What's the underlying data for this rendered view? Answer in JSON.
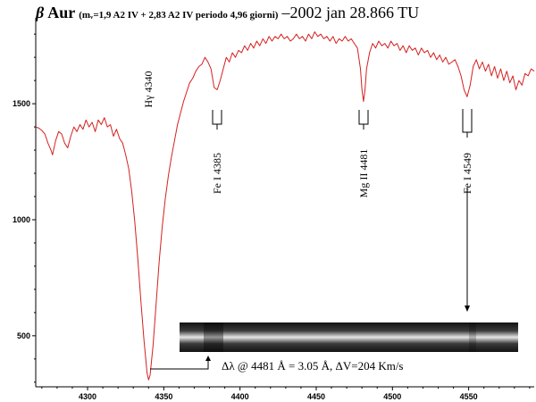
{
  "title": {
    "symbol": "β",
    "star": "Aur",
    "params": "(mᵥ=1,9 A2 IV + 2,83 A2 IV periodo 4,96 giorni)",
    "date": "–2002 jan 28.866 TU"
  },
  "chart_data": {
    "type": "line",
    "x_ticks": [
      "4300",
      "4350",
      "4400",
      "4450",
      "4500",
      "4550"
    ],
    "y_ticks": [
      "500",
      "1000",
      "1500"
    ],
    "xlim": [
      4266,
      4593
    ],
    "ylim": [
      280,
      1870
    ],
    "series": [
      {
        "color": "#d42020",
        "points": [
          [
            4266,
            1400
          ],
          [
            4268,
            1395
          ],
          [
            4270,
            1385
          ],
          [
            4272,
            1370
          ],
          [
            4274,
            1330
          ],
          [
            4276,
            1300
          ],
          [
            4277,
            1280
          ],
          [
            4279,
            1340
          ],
          [
            4281,
            1380
          ],
          [
            4283,
            1370
          ],
          [
            4285,
            1330
          ],
          [
            4287,
            1310
          ],
          [
            4289,
            1360
          ],
          [
            4291,
            1400
          ],
          [
            4293,
            1380
          ],
          [
            4295,
            1410
          ],
          [
            4297,
            1390
          ],
          [
            4299,
            1430
          ],
          [
            4301,
            1400
          ],
          [
            4303,
            1420
          ],
          [
            4305,
            1380
          ],
          [
            4307,
            1430
          ],
          [
            4309,
            1410
          ],
          [
            4311,
            1440
          ],
          [
            4313,
            1400
          ],
          [
            4315,
            1410
          ],
          [
            4317,
            1360
          ],
          [
            4319,
            1390
          ],
          [
            4321,
            1350
          ],
          [
            4323,
            1330
          ],
          [
            4325,
            1280
          ],
          [
            4327,
            1220
          ],
          [
            4329,
            1120
          ],
          [
            4331,
            990
          ],
          [
            4333,
            830
          ],
          [
            4335,
            650
          ],
          [
            4337,
            480
          ],
          [
            4339,
            340
          ],
          [
            4340,
            310
          ],
          [
            4341,
            330
          ],
          [
            4343,
            460
          ],
          [
            4345,
            640
          ],
          [
            4347,
            820
          ],
          [
            4349,
            970
          ],
          [
            4351,
            1090
          ],
          [
            4353,
            1190
          ],
          [
            4355,
            1270
          ],
          [
            4357,
            1340
          ],
          [
            4359,
            1410
          ],
          [
            4361,
            1460
          ],
          [
            4363,
            1510
          ],
          [
            4365,
            1550
          ],
          [
            4367,
            1590
          ],
          [
            4369,
            1610
          ],
          [
            4371,
            1640
          ],
          [
            4373,
            1660
          ],
          [
            4375,
            1670
          ],
          [
            4377,
            1700
          ],
          [
            4379,
            1680
          ],
          [
            4381,
            1650
          ],
          [
            4383,
            1570
          ],
          [
            4385,
            1560
          ],
          [
            4387,
            1600
          ],
          [
            4389,
            1650
          ],
          [
            4391,
            1700
          ],
          [
            4393,
            1680
          ],
          [
            4395,
            1720
          ],
          [
            4397,
            1700
          ],
          [
            4399,
            1730
          ],
          [
            4401,
            1720
          ],
          [
            4403,
            1750
          ],
          [
            4405,
            1730
          ],
          [
            4407,
            1760
          ],
          [
            4409,
            1740
          ],
          [
            4411,
            1770
          ],
          [
            4413,
            1750
          ],
          [
            4415,
            1780
          ],
          [
            4417,
            1760
          ],
          [
            4419,
            1790
          ],
          [
            4421,
            1770
          ],
          [
            4423,
            1790
          ],
          [
            4425,
            1780
          ],
          [
            4427,
            1800
          ],
          [
            4429,
            1780
          ],
          [
            4431,
            1790
          ],
          [
            4433,
            1770
          ],
          [
            4435,
            1780
          ],
          [
            4437,
            1800
          ],
          [
            4439,
            1780
          ],
          [
            4441,
            1790
          ],
          [
            4443,
            1770
          ],
          [
            4445,
            1800
          ],
          [
            4447,
            1780
          ],
          [
            4449,
            1810
          ],
          [
            4451,
            1790
          ],
          [
            4453,
            1800
          ],
          [
            4455,
            1780
          ],
          [
            4457,
            1790
          ],
          [
            4459,
            1770
          ],
          [
            4461,
            1790
          ],
          [
            4463,
            1760
          ],
          [
            4465,
            1780
          ],
          [
            4467,
            1770
          ],
          [
            4469,
            1790
          ],
          [
            4471,
            1770
          ],
          [
            4473,
            1780
          ],
          [
            4475,
            1760
          ],
          [
            4477,
            1740
          ],
          [
            4479,
            1650
          ],
          [
            4480,
            1560
          ],
          [
            4481,
            1510
          ],
          [
            4482,
            1560
          ],
          [
            4483,
            1650
          ],
          [
            4485,
            1720
          ],
          [
            4487,
            1760
          ],
          [
            4489,
            1740
          ],
          [
            4491,
            1770
          ],
          [
            4493,
            1750
          ],
          [
            4495,
            1760
          ],
          [
            4497,
            1740
          ],
          [
            4499,
            1770
          ],
          [
            4501,
            1750
          ],
          [
            4503,
            1760
          ],
          [
            4505,
            1730
          ],
          [
            4507,
            1750
          ],
          [
            4509,
            1720
          ],
          [
            4511,
            1750
          ],
          [
            4513,
            1730
          ],
          [
            4515,
            1740
          ],
          [
            4517,
            1710
          ],
          [
            4519,
            1740
          ],
          [
            4521,
            1720
          ],
          [
            4523,
            1730
          ],
          [
            4525,
            1700
          ],
          [
            4527,
            1720
          ],
          [
            4529,
            1690
          ],
          [
            4531,
            1710
          ],
          [
            4533,
            1680
          ],
          [
            4535,
            1700
          ],
          [
            4537,
            1670
          ],
          [
            4539,
            1680
          ],
          [
            4541,
            1690
          ],
          [
            4543,
            1660
          ],
          [
            4545,
            1620
          ],
          [
            4547,
            1560
          ],
          [
            4549,
            1530
          ],
          [
            4551,
            1580
          ],
          [
            4553,
            1660
          ],
          [
            4555,
            1690
          ],
          [
            4557,
            1650
          ],
          [
            4559,
            1680
          ],
          [
            4561,
            1640
          ],
          [
            4563,
            1670
          ],
          [
            4565,
            1620
          ],
          [
            4567,
            1660
          ],
          [
            4569,
            1610
          ],
          [
            4571,
            1650
          ],
          [
            4573,
            1600
          ],
          [
            4575,
            1640
          ],
          [
            4577,
            1590
          ],
          [
            4579,
            1620
          ],
          [
            4581,
            1560
          ],
          [
            4583,
            1600
          ],
          [
            4585,
            1580
          ],
          [
            4587,
            1630
          ],
          [
            4589,
            1620
          ],
          [
            4591,
            1650
          ],
          [
            4593,
            1640
          ]
        ]
      }
    ],
    "lines": [
      {
        "name": "Hγ",
        "label": "Hγ 4340",
        "wavelength": 4340
      },
      {
        "name": "Fe I",
        "label": "Fe I 4385",
        "wavelength": 4385
      },
      {
        "name": "Mg II",
        "label": "Mg II 4481",
        "wavelength": 4481
      },
      {
        "name": "Fe I",
        "label": "Fe I 4549",
        "wavelength": 4549
      }
    ],
    "annotation": "Δλ @ 4481 Å = 3.05 Å, ΔV=204 Km/s"
  },
  "colors": {
    "spectrum": "#d42020",
    "axis": "#000000"
  }
}
